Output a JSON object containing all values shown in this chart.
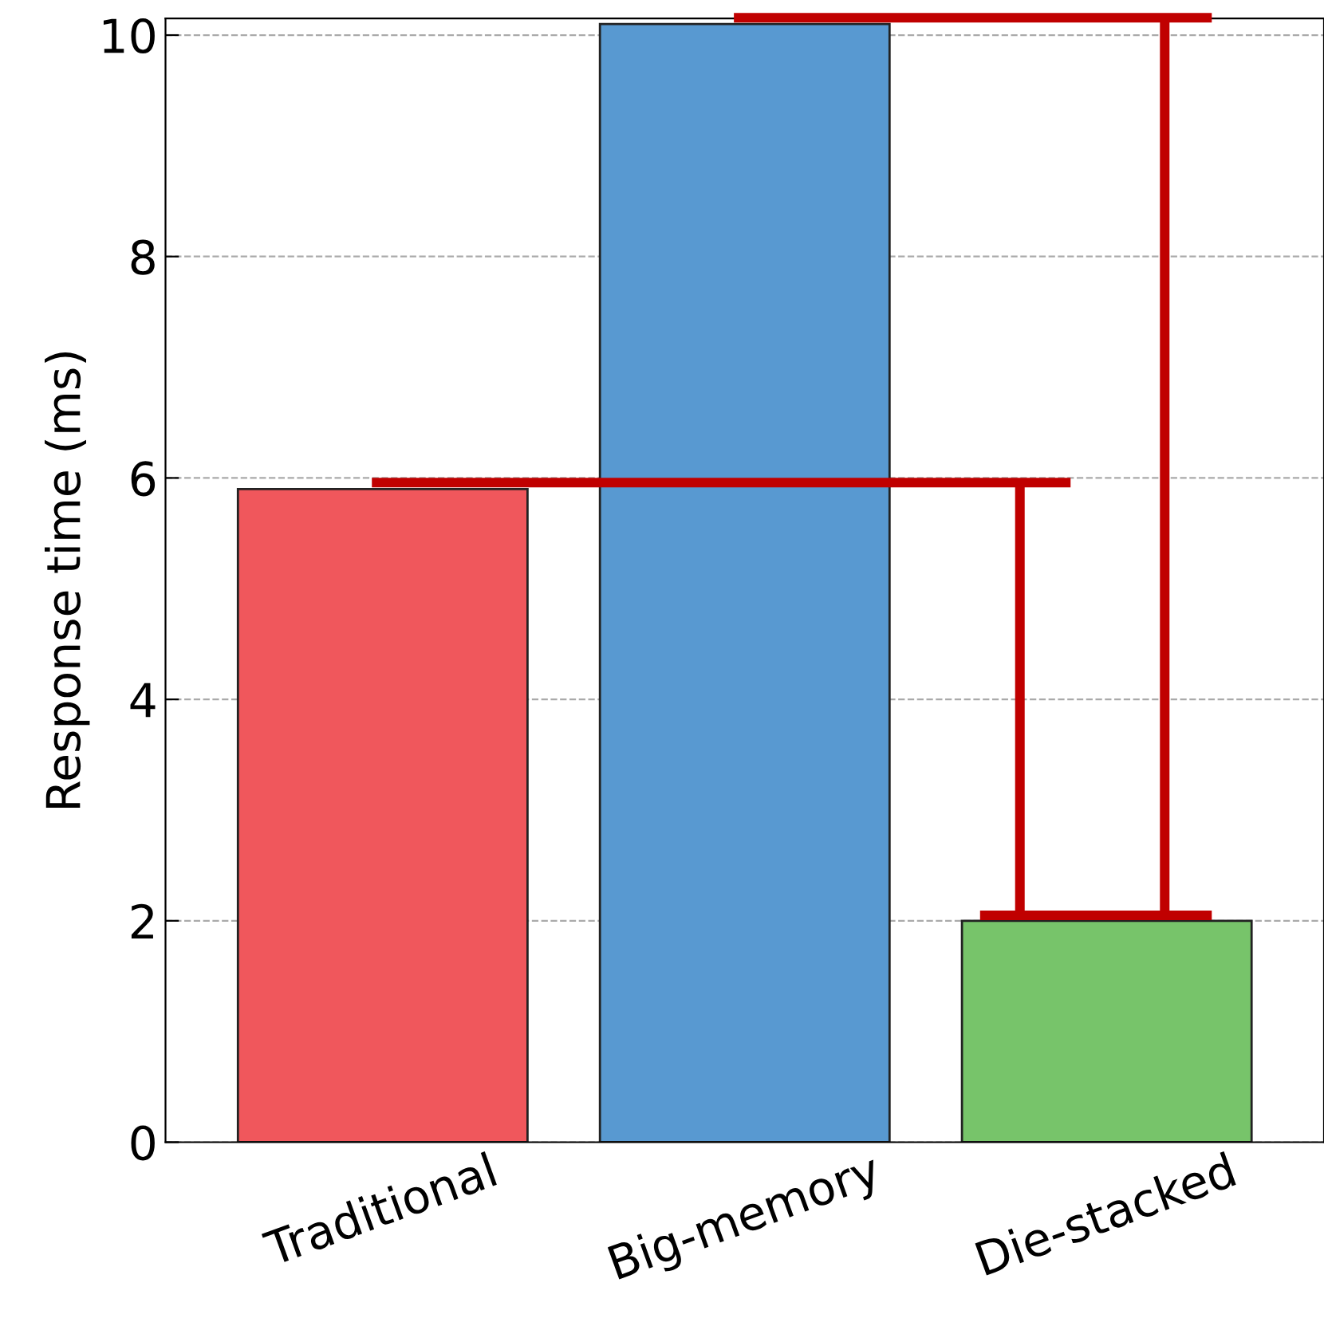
{
  "chart_data": {
    "type": "bar",
    "ylabel": "Response time (ms)",
    "categories": [
      "Traditional",
      "Big-memory",
      "Die-stacked"
    ],
    "values": [
      5.9,
      10.1,
      2.0
    ],
    "colors": [
      "#f0575c",
      "#5899d1",
      "#77c46a"
    ],
    "ylim": [
      0,
      10.15
    ],
    "yticks": [
      0,
      2,
      4,
      6,
      8,
      10
    ],
    "grid": "y"
  }
}
